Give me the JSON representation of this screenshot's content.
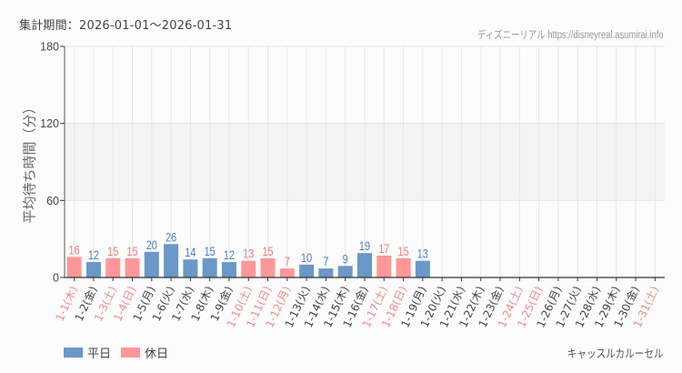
{
  "header": {
    "period": "集計期間：2026-01-01～2026-01-31",
    "site": "ディズニーリアル https://disneyreal.asumirai.info"
  },
  "footer": {
    "attraction": "キャッスルカルーセル"
  },
  "legend": [
    {
      "label": "平日",
      "color": "#6a98c8"
    },
    {
      "label": "休日",
      "color": "#ff9799"
    }
  ],
  "colors": {
    "weekday": "#6a98c8",
    "holiday": "#ff9799",
    "weekday_label": "#4f80b8",
    "holiday_label": "#f07a7c",
    "holiday_tick": "#f08a8c",
    "weekday_tick": "#444444"
  },
  "chart_data": {
    "type": "bar",
    "title": "",
    "xlabel": "",
    "ylabel": "平均待ち時間（分）",
    "ylim": [
      0,
      180
    ],
    "yticks": [
      0,
      60,
      120,
      180
    ],
    "grid": true,
    "legend_position": "bottom-left",
    "categories": [
      "1-1(木)",
      "1-2(金)",
      "1-3(土)",
      "1-4(日)",
      "1-5(月)",
      "1-6(火)",
      "1-7(水)",
      "1-8(木)",
      "1-9(金)",
      "1-10(土)",
      "1-11(日)",
      "1-12(月)",
      "1-13(火)",
      "1-14(水)",
      "1-15(木)",
      "1-16(金)",
      "1-17(土)",
      "1-18(日)",
      "1-19(月)",
      "1-20(火)",
      "1-21(水)",
      "1-22(木)",
      "1-23(金)",
      "1-24(土)",
      "1-25(日)",
      "1-26(月)",
      "1-27(火)",
      "1-28(水)",
      "1-29(木)",
      "1-30(金)",
      "1-31(土)"
    ],
    "day_type": [
      "休日",
      "平日",
      "休日",
      "休日",
      "平日",
      "平日",
      "平日",
      "平日",
      "平日",
      "休日",
      "休日",
      "休日",
      "平日",
      "平日",
      "平日",
      "平日",
      "休日",
      "休日",
      "平日",
      "平日",
      "平日",
      "平日",
      "平日",
      "休日",
      "休日",
      "平日",
      "平日",
      "平日",
      "平日",
      "平日",
      "休日"
    ],
    "values": [
      16,
      12,
      15,
      15,
      20,
      26,
      14,
      15,
      12,
      13,
      15,
      7,
      10,
      7,
      9,
      19,
      17,
      15,
      13,
      null,
      null,
      null,
      null,
      null,
      null,
      null,
      null,
      null,
      null,
      null,
      null
    ],
    "series": [
      {
        "name": "平日",
        "values": [
          null,
          12,
          null,
          null,
          20,
          26,
          14,
          15,
          12,
          null,
          null,
          null,
          10,
          7,
          9,
          19,
          null,
          null,
          13,
          null,
          null,
          null,
          null,
          null,
          null,
          null,
          null,
          null,
          null,
          null,
          null
        ]
      },
      {
        "name": "休日",
        "values": [
          16,
          null,
          15,
          15,
          null,
          null,
          null,
          null,
          null,
          13,
          15,
          7,
          null,
          null,
          null,
          null,
          17,
          15,
          null,
          null,
          null,
          null,
          null,
          null,
          null,
          null,
          null,
          null,
          null,
          null,
          null
        ]
      }
    ]
  }
}
